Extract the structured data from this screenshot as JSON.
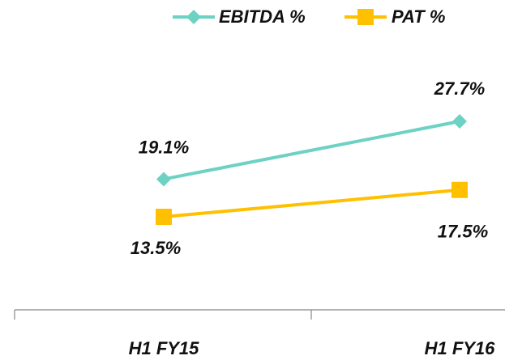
{
  "chart_data": {
    "type": "line",
    "categories": [
      "H1 FY15",
      "H1 FY16"
    ],
    "series": [
      {
        "name": "EBITDA %",
        "color": "#6dd2c3",
        "marker": "diamond",
        "values": [
          19.1,
          27.7
        ],
        "value_labels": [
          "19.1%",
          "27.7%"
        ]
      },
      {
        "name": "PAT %",
        "color": "#ffc000",
        "marker": "square",
        "values": [
          13.5,
          17.5
        ],
        "value_labels": [
          "13.5%",
          "17.5%"
        ]
      }
    ],
    "legend": "top"
  }
}
